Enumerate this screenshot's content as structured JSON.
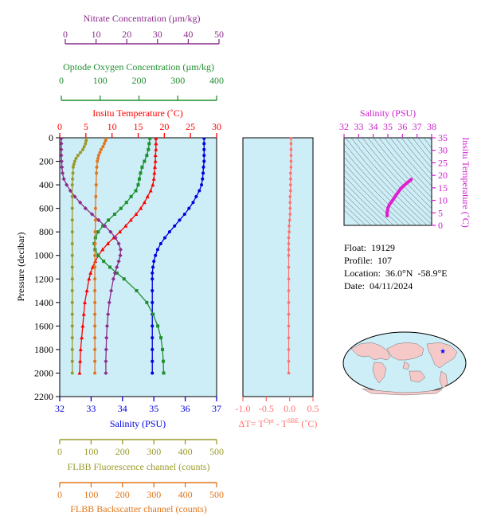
{
  "colors": {
    "nitrate": "#8b2e8b",
    "oxygen": "#1f8f2f",
    "temperature": "#ff0000",
    "salinity": "#0000e0",
    "fluorescence": "#9a9a2a",
    "backscatter": "#e0761c",
    "delta_t": "#ff6f6f",
    "ts_curve": "#e020d0",
    "panel_fill": "#cdeef7"
  },
  "float_info": {
    "float": "Float:  19129",
    "profile": "Profile:  107",
    "location": "Location:  36.0°N  -58.9°E",
    "date": "Date:  04/11/2024"
  },
  "chart_data": [
    {
      "type": "line",
      "panel": "main-profile",
      "ylabel": "Pressure (decibar)",
      "y_ticks": [
        "0",
        "200",
        "400",
        "600",
        "800",
        "1000",
        "1200",
        "1400",
        "1600",
        "1800",
        "2000",
        "2200"
      ],
      "ylim": [
        2200,
        0
      ],
      "axes": [
        {
          "id": "nitrate",
          "label": "Nitrate Concentration (µm/kg)",
          "range": [
            0,
            50
          ],
          "ticks": [
            "0",
            "10",
            "20",
            "30",
            "40",
            "50"
          ]
        },
        {
          "id": "oxygen",
          "label": "Optode Oxygen Concentration (µm/kg)",
          "range": [
            0,
            400
          ],
          "ticks": [
            "0",
            "100",
            "200",
            "300",
            "400"
          ]
        },
        {
          "id": "temperature",
          "label": "Insitu Temperature (˚C)",
          "range": [
            0,
            30
          ],
          "ticks": [
            "0",
            "5",
            "10",
            "15",
            "20",
            "25",
            "30"
          ]
        },
        {
          "id": "salinity",
          "label": "Salinity (PSU)",
          "range": [
            32,
            37
          ],
          "ticks": [
            "32",
            "33",
            "34",
            "35",
            "36",
            "37"
          ]
        },
        {
          "id": "fluorescence",
          "label": "FLBB Fluorescence channel (counts)",
          "range": [
            0,
            500
          ],
          "ticks": [
            "0",
            "100",
            "200",
            "300",
            "400",
            "500"
          ]
        },
        {
          "id": "backscatter",
          "label": "FLBB Backscatter channel (counts)",
          "range": [
            0,
            500
          ],
          "ticks": [
            "0",
            "100",
            "200",
            "300",
            "400",
            "500"
          ]
        }
      ],
      "series": [
        {
          "axis": "temperature",
          "marker": "triangle",
          "points": [
            [
              5,
              18.4
            ],
            [
              50,
              18.4
            ],
            [
              100,
              18.4
            ],
            [
              150,
              18.3
            ],
            [
              200,
              18.3
            ],
            [
              250,
              18.2
            ],
            [
              300,
              18.1
            ],
            [
              350,
              18.0
            ],
            [
              400,
              17.8
            ],
            [
              450,
              17.4
            ],
            [
              500,
              16.8
            ],
            [
              550,
              16.2
            ],
            [
              600,
              15.5
            ],
            [
              650,
              14.6
            ],
            [
              700,
              13.6
            ],
            [
              750,
              12.6
            ],
            [
              800,
              11.5
            ],
            [
              850,
              10.3
            ],
            [
              900,
              9.2
            ],
            [
              950,
              8.2
            ],
            [
              1000,
              7.4
            ],
            [
              1050,
              6.8
            ],
            [
              1100,
              6.3
            ],
            [
              1150,
              5.9
            ],
            [
              1200,
              5.6
            ],
            [
              1300,
              5.2
            ],
            [
              1400,
              4.8
            ],
            [
              1500,
              4.6
            ],
            [
              1600,
              4.4
            ],
            [
              1700,
              4.2
            ],
            [
              1800,
              4.0
            ],
            [
              1900,
              3.9
            ],
            [
              2000,
              3.8
            ]
          ]
        },
        {
          "axis": "salinity",
          "marker": "circle",
          "points": [
            [
              5,
              36.6
            ],
            [
              50,
              36.6
            ],
            [
              100,
              36.6
            ],
            [
              150,
              36.6
            ],
            [
              200,
              36.6
            ],
            [
              250,
              36.58
            ],
            [
              300,
              36.57
            ],
            [
              350,
              36.55
            ],
            [
              400,
              36.52
            ],
            [
              450,
              36.45
            ],
            [
              500,
              36.35
            ],
            [
              550,
              36.25
            ],
            [
              600,
              36.12
            ],
            [
              650,
              35.98
            ],
            [
              700,
              35.82
            ],
            [
              750,
              35.66
            ],
            [
              800,
              35.5
            ],
            [
              850,
              35.35
            ],
            [
              900,
              35.22
            ],
            [
              950,
              35.12
            ],
            [
              1000,
              35.05
            ],
            [
              1050,
              35.0
            ],
            [
              1100,
              34.97
            ],
            [
              1150,
              34.95
            ],
            [
              1200,
              34.95
            ],
            [
              1300,
              34.95
            ],
            [
              1400,
              34.95
            ],
            [
              1500,
              34.95
            ],
            [
              1600,
              34.95
            ],
            [
              1700,
              34.95
            ],
            [
              1800,
              34.95
            ],
            [
              1900,
              34.95
            ],
            [
              2000,
              34.95
            ]
          ]
        },
        {
          "axis": "oxygen",
          "marker": "square",
          "points": [
            [
              5,
              230
            ],
            [
              50,
              228
            ],
            [
              100,
              226
            ],
            [
              150,
              222
            ],
            [
              200,
              216
            ],
            [
              250,
              210
            ],
            [
              300,
              206
            ],
            [
              350,
              203
            ],
            [
              400,
              200
            ],
            [
              450,
              194
            ],
            [
              500,
              182
            ],
            [
              550,
              170
            ],
            [
              600,
              156
            ],
            [
              650,
              140
            ],
            [
              700,
              124
            ],
            [
              750,
              110
            ],
            [
              800,
              98
            ],
            [
              850,
              91
            ],
            [
              900,
              88
            ],
            [
              950,
              90
            ],
            [
              1000,
              98
            ],
            [
              1050,
              112
            ],
            [
              1100,
              128
            ],
            [
              1150,
              146
            ],
            [
              1200,
              164
            ],
            [
              1300,
              196
            ],
            [
              1400,
              222
            ],
            [
              1500,
              238
            ],
            [
              1600,
              250
            ],
            [
              1700,
              258
            ],
            [
              1800,
              262
            ],
            [
              1900,
              264
            ],
            [
              2000,
              265
            ]
          ]
        },
        {
          "axis": "nitrate",
          "marker": "diamond",
          "points": [
            [
              5,
              0.5
            ],
            [
              50,
              0.5
            ],
            [
              100,
              0.5
            ],
            [
              150,
              0.5
            ],
            [
              200,
              0.6
            ],
            [
              250,
              0.7
            ],
            [
              300,
              0.9
            ],
            [
              350,
              1.3
            ],
            [
              400,
              2.2
            ],
            [
              450,
              3.4
            ],
            [
              500,
              4.8
            ],
            [
              550,
              6.5
            ],
            [
              600,
              8.2
            ],
            [
              650,
              10.3
            ],
            [
              700,
              12.4
            ],
            [
              750,
              14.4
            ],
            [
              800,
              16.2
            ],
            [
              850,
              17.8
            ],
            [
              900,
              18.8
            ],
            [
              950,
              19.4
            ],
            [
              1000,
              19.3
            ],
            [
              1050,
              18.8
            ],
            [
              1100,
              18.2
            ],
            [
              1150,
              17.6
            ],
            [
              1200,
              17.1
            ],
            [
              1300,
              16.4
            ],
            [
              1400,
              15.8
            ],
            [
              1500,
              15.4
            ],
            [
              1600,
              15.1
            ],
            [
              1700,
              14.9
            ],
            [
              1800,
              14.8
            ],
            [
              1900,
              14.7
            ],
            [
              2000,
              14.7
            ]
          ]
        },
        {
          "axis": "fluorescence",
          "marker": "circle",
          "points": [
            [
              5,
              85
            ],
            [
              25,
              84
            ],
            [
              50,
              82
            ],
            [
              75,
              78
            ],
            [
              100,
              74
            ],
            [
              125,
              66
            ],
            [
              150,
              58
            ],
            [
              175,
              52
            ],
            [
              200,
              48
            ],
            [
              225,
              45
            ],
            [
              250,
              43
            ],
            [
              300,
              42
            ],
            [
              350,
              41
            ],
            [
              400,
              40
            ],
            [
              500,
              40
            ],
            [
              600,
              40
            ],
            [
              700,
              40
            ],
            [
              800,
              40
            ],
            [
              900,
              40
            ],
            [
              1000,
              40
            ],
            [
              1100,
              40
            ],
            [
              1200,
              40
            ],
            [
              1300,
              40
            ],
            [
              1400,
              40
            ],
            [
              1500,
              40
            ],
            [
              1600,
              40
            ],
            [
              1700,
              40
            ],
            [
              1800,
              40
            ],
            [
              1900,
              40
            ],
            [
              2000,
              40
            ]
          ]
        },
        {
          "axis": "backscatter",
          "marker": "circle",
          "points": [
            [
              5,
              148
            ],
            [
              25,
              146
            ],
            [
              50,
              142
            ],
            [
              75,
              138
            ],
            [
              100,
              132
            ],
            [
              125,
              128
            ],
            [
              150,
              124
            ],
            [
              175,
              122
            ],
            [
              200,
              120
            ],
            [
              250,
              118
            ],
            [
              300,
              117
            ],
            [
              400,
              116
            ],
            [
              500,
              115
            ],
            [
              600,
              114
            ],
            [
              700,
              114
            ],
            [
              800,
              113
            ],
            [
              900,
              113
            ],
            [
              1000,
              112
            ],
            [
              1100,
              112
            ],
            [
              1200,
              112
            ],
            [
              1300,
              112
            ],
            [
              1400,
              112
            ],
            [
              1500,
              112
            ],
            [
              1600,
              112
            ],
            [
              1700,
              112
            ],
            [
              1800,
              112
            ],
            [
              1900,
              112
            ],
            [
              2000,
              112
            ]
          ]
        }
      ]
    },
    {
      "type": "line",
      "panel": "delta-t",
      "xlabel": "ΔT= T",
      "xlabel_sup1": "Opt",
      "xlabel_mid": " - T",
      "xlabel_sup2": "SBE",
      "xlabel_end": " (˚C)",
      "xlim": [
        -1.0,
        0.5
      ],
      "x_ticks": [
        "-1.0",
        "-0.5",
        "0.0",
        "0.5"
      ],
      "ylim": [
        2200,
        0
      ],
      "series": [
        {
          "name": "",
          "points": [
            [
              5,
              0.03
            ],
            [
              50,
              0.03
            ],
            [
              100,
              0.03
            ],
            [
              150,
              0.03
            ],
            [
              200,
              0.03
            ],
            [
              250,
              0.03
            ],
            [
              300,
              0.02
            ],
            [
              350,
              0.02
            ],
            [
              400,
              0.02
            ],
            [
              450,
              0.02
            ],
            [
              500,
              0.01
            ],
            [
              550,
              0.01
            ],
            [
              600,
              0.01
            ],
            [
              650,
              0.01
            ],
            [
              700,
              0.0
            ],
            [
              750,
              -0.01
            ],
            [
              800,
              -0.01
            ],
            [
              850,
              -0.02
            ],
            [
              900,
              -0.02
            ],
            [
              950,
              -0.02
            ],
            [
              1000,
              -0.02
            ],
            [
              1100,
              -0.02
            ],
            [
              1200,
              -0.02
            ],
            [
              1300,
              -0.02
            ],
            [
              1400,
              -0.02
            ],
            [
              1500,
              -0.02
            ],
            [
              1600,
              -0.02
            ],
            [
              1700,
              -0.02
            ],
            [
              1800,
              -0.02
            ],
            [
              1900,
              -0.02
            ],
            [
              2000,
              -0.02
            ]
          ]
        }
      ]
    },
    {
      "type": "line",
      "panel": "ts-diagram",
      "xlabel": "Salinity (PSU)",
      "ylabel": "Insitu Temperature (˚C)",
      "xlim": [
        32,
        38
      ],
      "ylim": [
        0,
        35
      ],
      "x_ticks": [
        "32",
        "33",
        "34",
        "35",
        "36",
        "37",
        "38"
      ],
      "y_ticks": [
        "0",
        "5",
        "10",
        "15",
        "20",
        "25",
        "30",
        "35"
      ],
      "series": [
        {
          "name": "",
          "points": [
            [
              34.95,
              3.8
            ],
            [
              34.95,
              5.0
            ],
            [
              35.0,
              6.8
            ],
            [
              35.1,
              8.2
            ],
            [
              35.3,
              9.8
            ],
            [
              35.6,
              12.4
            ],
            [
              35.9,
              14.8
            ],
            [
              36.2,
              16.4
            ],
            [
              36.4,
              17.4
            ],
            [
              36.55,
              18.0
            ],
            [
              36.6,
              18.4
            ]
          ]
        }
      ]
    }
  ]
}
